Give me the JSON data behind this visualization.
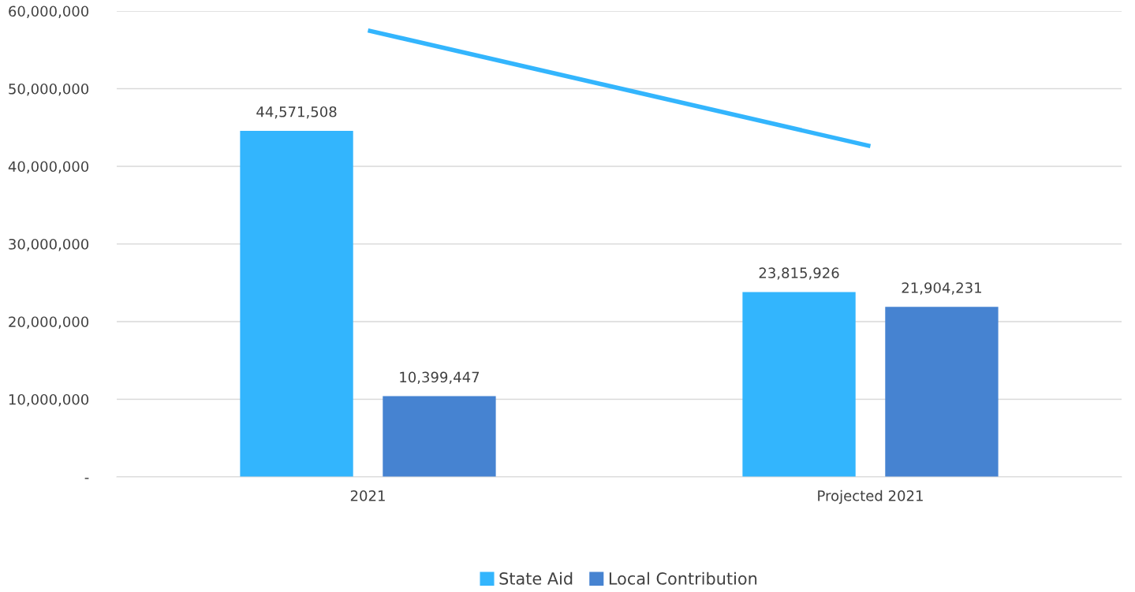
{
  "chart_data": {
    "type": "bar",
    "categories": [
      "2021",
      "Projected 2021"
    ],
    "series": [
      {
        "name": "State Aid",
        "color": "#33b5fd",
        "values": [
          44571508,
          23815926
        ],
        "value_labels": [
          "44,571,508",
          "23,815,926"
        ]
      },
      {
        "name": "Local Contribution",
        "color": "#4683d1",
        "values": [
          10399447,
          21904231
        ],
        "value_labels": [
          "10,399,447",
          "21,904,231"
        ]
      },
      {
        "type": "line",
        "color": "#33b5fd",
        "values": [
          57500000,
          42600000
        ]
      }
    ],
    "ylim": [
      0,
      60000000
    ],
    "yticks": [
      {
        "value": 0,
        "label": "-"
      },
      {
        "value": 10000000,
        "label": "10,000,000"
      },
      {
        "value": 20000000,
        "label": "20,000,000"
      },
      {
        "value": 30000000,
        "label": "30,000,000"
      },
      {
        "value": 40000000,
        "label": "40,000,000"
      },
      {
        "value": 50000000,
        "label": "50,000,000"
      },
      {
        "value": 60000000,
        "label": "60,000,000"
      }
    ],
    "grid": "y",
    "legend": "bottom"
  }
}
